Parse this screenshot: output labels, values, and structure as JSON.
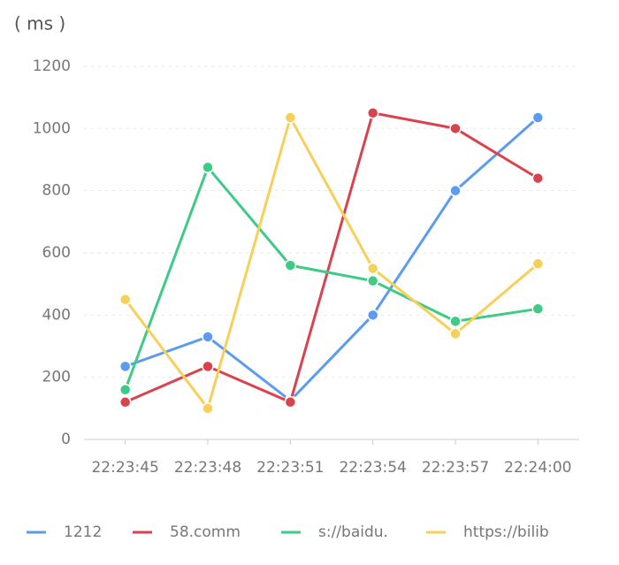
{
  "chart_data": {
    "type": "line",
    "y_label": "( ms )",
    "categories": [
      "22:23:45",
      "22:23:48",
      "22:23:51",
      "22:23:54",
      "22:23:57",
      "22:24:00"
    ],
    "series": [
      {
        "name": "1212",
        "color": "#5b9bf0",
        "values": [
          235,
          330,
          125,
          400,
          800,
          1035
        ]
      },
      {
        "name": "58.comm",
        "color": "#d9434e",
        "values": [
          120,
          235,
          120,
          1050,
          1000,
          840
        ]
      },
      {
        "name": "s://baidu.",
        "color": "#3ecb85",
        "values": [
          160,
          875,
          560,
          510,
          380,
          420
        ]
      },
      {
        "name": "https://bilib",
        "color": "#f7d05a",
        "values": [
          450,
          100,
          1035,
          550,
          340,
          565
        ]
      }
    ],
    "ylim": [
      0,
      1200
    ],
    "yticks": [
      0,
      200,
      400,
      600,
      800,
      1000,
      1200
    ],
    "grid": true
  }
}
